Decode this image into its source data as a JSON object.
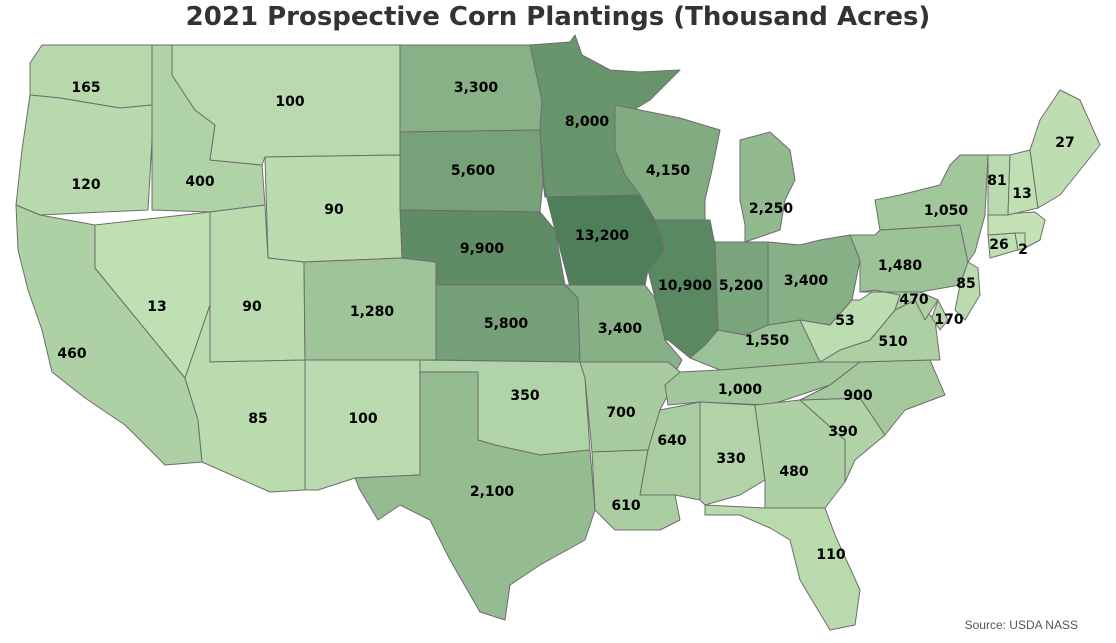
{
  "title": "2021 Prospective Corn Plantings (Thousand Acres)",
  "source": "Source: USDA NASS",
  "color_scale": {
    "low": "#c3e3b6",
    "high": "#4f7f58"
  },
  "states": [
    {
      "id": "WA",
      "label": "165",
      "value": 165
    },
    {
      "id": "OR",
      "label": "120",
      "value": 120
    },
    {
      "id": "CA",
      "label": "460",
      "value": 460
    },
    {
      "id": "ID",
      "label": "400",
      "value": 400
    },
    {
      "id": "NV",
      "label": "13",
      "value": 13
    },
    {
      "id": "MT",
      "label": "100",
      "value": 100
    },
    {
      "id": "WY",
      "label": "90",
      "value": 90
    },
    {
      "id": "UT",
      "label": "90",
      "value": 90
    },
    {
      "id": "AZ",
      "label": "85",
      "value": 85
    },
    {
      "id": "CO",
      "label": "1,280",
      "value": 1280
    },
    {
      "id": "NM",
      "label": "100",
      "value": 100
    },
    {
      "id": "ND",
      "label": "3,300",
      "value": 3300
    },
    {
      "id": "SD",
      "label": "5,600",
      "value": 5600
    },
    {
      "id": "NE",
      "label": "9,900",
      "value": 9900
    },
    {
      "id": "KS",
      "label": "5,800",
      "value": 5800
    },
    {
      "id": "OK",
      "label": "350",
      "value": 350
    },
    {
      "id": "TX",
      "label": "2,100",
      "value": 2100
    },
    {
      "id": "MN",
      "label": "8,000",
      "value": 8000
    },
    {
      "id": "IA",
      "label": "13,200",
      "value": 13200
    },
    {
      "id": "MO",
      "label": "3,400",
      "value": 3400
    },
    {
      "id": "AR",
      "label": "700",
      "value": 700
    },
    {
      "id": "LA",
      "label": "610",
      "value": 610
    },
    {
      "id": "WI",
      "label": "4,150",
      "value": 4150
    },
    {
      "id": "IL",
      "label": "10,900",
      "value": 10900
    },
    {
      "id": "MS",
      "label": "640",
      "value": 640
    },
    {
      "id": "MI",
      "label": "2,250",
      "value": 2250
    },
    {
      "id": "IN",
      "label": "5,200",
      "value": 5200
    },
    {
      "id": "KY",
      "label": "1,550",
      "value": 1550
    },
    {
      "id": "TN",
      "label": "1,000",
      "value": 1000
    },
    {
      "id": "AL",
      "label": "330",
      "value": 330
    },
    {
      "id": "OH",
      "label": "3,400",
      "value": 3400
    },
    {
      "id": "GA",
      "label": "480",
      "value": 480
    },
    {
      "id": "FL",
      "label": "110",
      "value": 110
    },
    {
      "id": "SC",
      "label": "390",
      "value": 390
    },
    {
      "id": "NC",
      "label": "900",
      "value": 900
    },
    {
      "id": "VA",
      "label": "510",
      "value": 510
    },
    {
      "id": "WV",
      "label": "53",
      "value": 53
    },
    {
      "id": "PA",
      "label": "1,480",
      "value": 1480
    },
    {
      "id": "NY",
      "label": "1,050",
      "value": 1050
    },
    {
      "id": "MD",
      "label": "470",
      "value": 470
    },
    {
      "id": "DE",
      "label": "170",
      "value": 170
    },
    {
      "id": "NJ",
      "label": "85",
      "value": 85
    },
    {
      "id": "CT",
      "label": "26",
      "value": 26
    },
    {
      "id": "RI",
      "label": "2",
      "value": 2
    },
    {
      "id": "MA",
      "label": "",
      "value": null
    },
    {
      "id": "VT",
      "label": "81",
      "value": 81
    },
    {
      "id": "NH",
      "label": "13",
      "value": 13
    },
    {
      "id": "ME",
      "label": "27",
      "value": 27
    }
  ]
}
